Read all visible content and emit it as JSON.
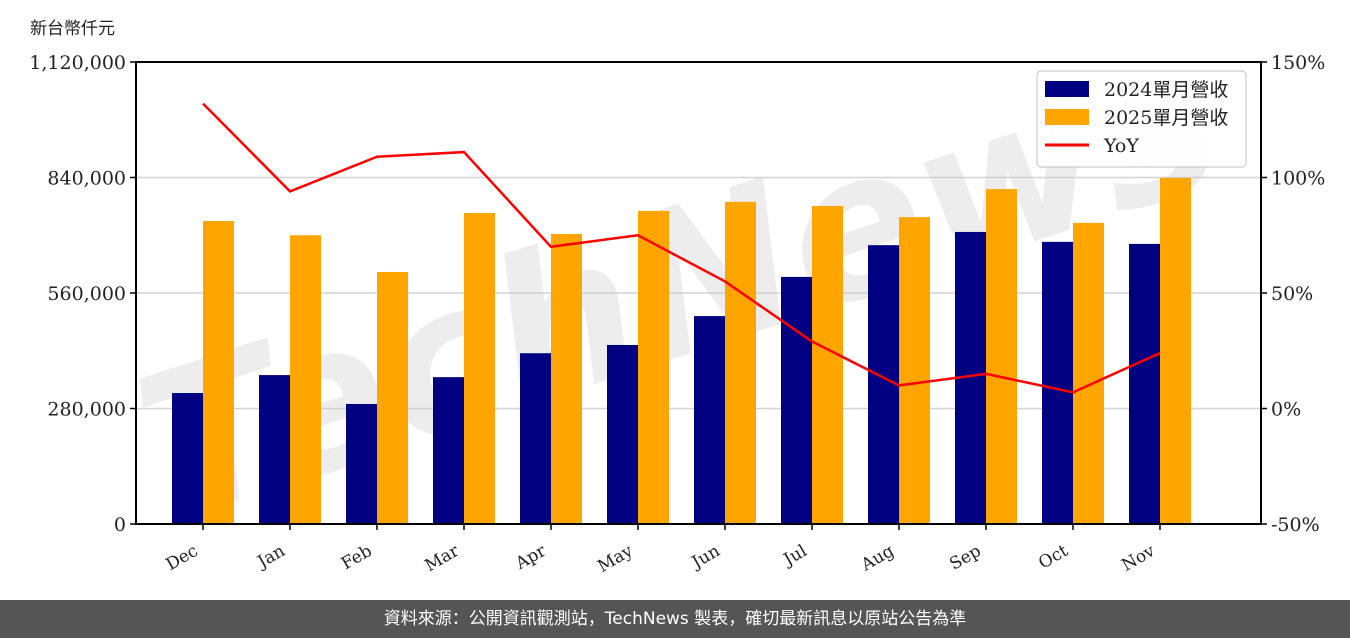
{
  "chart_data": {
    "type": "bar",
    "title": "",
    "ylabel": "新台幣仟元",
    "xlabel": "",
    "categories": [
      "Dec",
      "Jan",
      "Feb",
      "Mar",
      "Apr",
      "May",
      "Jun",
      "Jul",
      "Aug",
      "Sep",
      "Oct",
      "Nov"
    ],
    "series": [
      {
        "name": "2024單月營收",
        "type": "bar",
        "color": "#000080",
        "axis": "left",
        "values": [
          317500,
          361000,
          291000,
          356000,
          414000,
          434000,
          504000,
          599000,
          676000,
          708000,
          684000,
          679000
        ]
      },
      {
        "name": "2025單月營收",
        "type": "bar",
        "color": "#FFA500",
        "axis": "left",
        "values": [
          734500,
          700000,
          611000,
          754000,
          703000,
          759000,
          781000,
          771000,
          744000,
          812000,
          730000,
          839000
        ]
      },
      {
        "name": "YoY",
        "type": "line",
        "color": "#FF0000",
        "axis": "right",
        "unit": "%",
        "values": [
          132,
          94,
          109,
          111,
          70,
          75,
          55,
          29,
          10,
          15,
          7,
          24
        ]
      }
    ],
    "ylim": [
      0,
      1120000
    ],
    "yticks": [
      0,
      280000,
      560000,
      840000,
      1120000
    ],
    "ytick_labels": [
      "0",
      "280,000",
      "560,000",
      "840,000",
      "1,120,000"
    ],
    "y2lim": [
      -50,
      150
    ],
    "y2ticks": [
      -50,
      0,
      50,
      100,
      150
    ],
    "y2tick_labels": [
      "-50%",
      "0%",
      "50%",
      "100%",
      "150%"
    ],
    "grid": "horizontal",
    "legend_position": "upper right",
    "watermark": "TechNews"
  },
  "unit_label": "新台幣仟元",
  "footer": {
    "text": "資料來源：公開資訊觀測站，TechNews 製表，確切最新訊息以原站公告為準"
  }
}
